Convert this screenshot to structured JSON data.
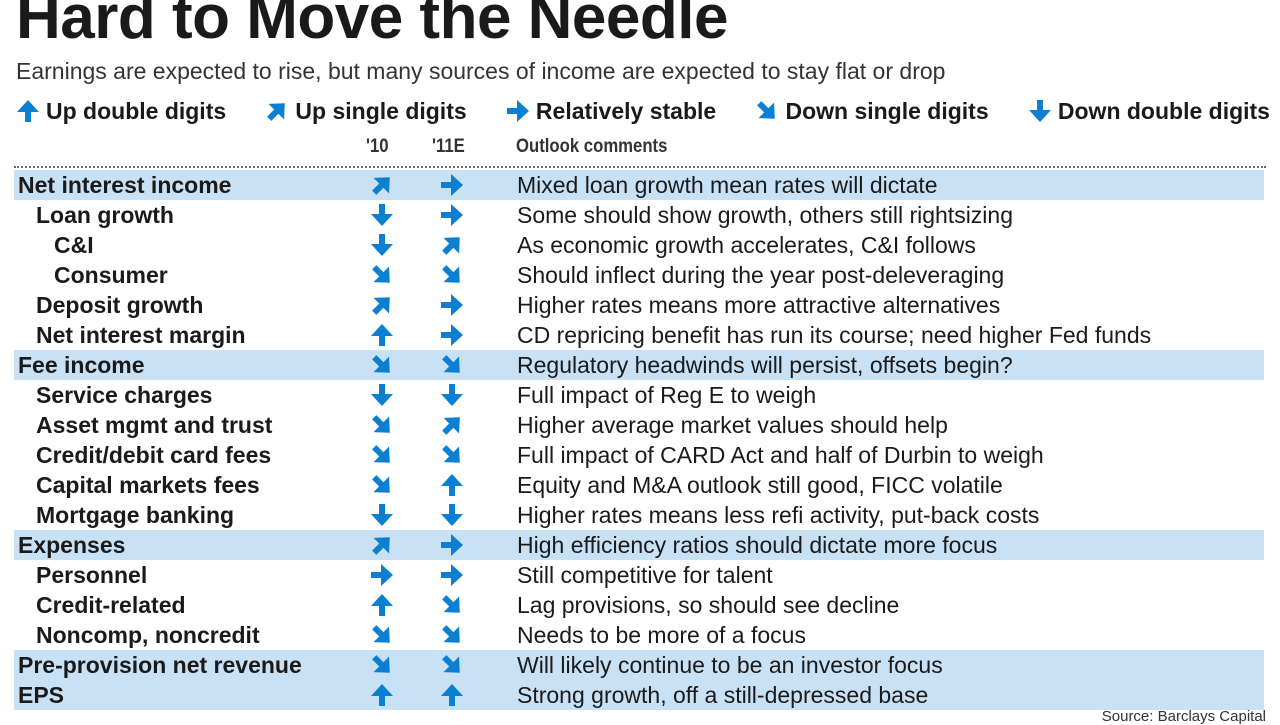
{
  "chart_data": {
    "type": "table",
    "title": "Hard to Move the Needle",
    "subtitle": "Earnings are expected to rise, but many sources of income are expected to stay flat or drop",
    "legend": [
      {
        "key": "up2",
        "label": "Up double digits",
        "icon": "arrow-up-icon"
      },
      {
        "key": "up1",
        "label": "Up single digits",
        "icon": "arrow-up-right-icon"
      },
      {
        "key": "flat",
        "label": "Relatively stable",
        "icon": "arrow-right-icon"
      },
      {
        "key": "down1",
        "label": "Down single digits",
        "icon": "arrow-down-right-icon"
      },
      {
        "key": "down2",
        "label": "Down double digits",
        "icon": "arrow-down-icon"
      }
    ],
    "columns": {
      "y10": "'10",
      "y11": "'11E",
      "comments": "Outlook comments"
    },
    "rows": [
      {
        "label": "Net interest income",
        "level": 0,
        "y10": "up1",
        "y11": "flat",
        "comment": "Mixed loan growth mean rates will dictate"
      },
      {
        "label": "Loan growth",
        "level": 1,
        "y10": "down2",
        "y11": "flat",
        "comment": "Some should show growth, others still rightsizing"
      },
      {
        "label": "C&I",
        "level": 2,
        "y10": "down2",
        "y11": "up1",
        "comment": "As economic growth accelerates, C&I follows"
      },
      {
        "label": "Consumer",
        "level": 2,
        "y10": "down1",
        "y11": "down1",
        "comment": "Should inflect during the year post-deleveraging"
      },
      {
        "label": "Deposit growth",
        "level": 1,
        "y10": "up1",
        "y11": "flat",
        "comment": "Higher rates means more attractive alternatives"
      },
      {
        "label": "Net interest margin",
        "level": 1,
        "y10": "up2",
        "y11": "flat",
        "comment": "CD repricing benefit has run its course; need higher Fed funds"
      },
      {
        "label": "Fee income",
        "level": 0,
        "y10": "down1",
        "y11": "down1",
        "comment": "Regulatory headwinds will persist, offsets begin?"
      },
      {
        "label": "Service charges",
        "level": 1,
        "y10": "down2",
        "y11": "down2",
        "comment": "Full impact of Reg E to weigh"
      },
      {
        "label": "Asset mgmt and trust",
        "level": 1,
        "y10": "down1",
        "y11": "up1",
        "comment": "Higher average market values should help"
      },
      {
        "label": "Credit/debit card fees",
        "level": 1,
        "y10": "down1",
        "y11": "down1",
        "comment": "Full impact of CARD Act and half of Durbin to weigh"
      },
      {
        "label": "Capital markets fees",
        "level": 1,
        "y10": "down1",
        "y11": "up2",
        "comment": "Equity and M&A outlook still good, FICC volatile"
      },
      {
        "label": "Mortgage banking",
        "level": 1,
        "y10": "down2",
        "y11": "down2",
        "comment": "Higher rates means less refi activity, put-back costs"
      },
      {
        "label": "Expenses",
        "level": 0,
        "y10": "up1",
        "y11": "flat",
        "comment": "High efficiency ratios should dictate more focus"
      },
      {
        "label": "Personnel",
        "level": 1,
        "y10": "flat",
        "y11": "flat",
        "comment": "Still competitive for talent"
      },
      {
        "label": "Credit-related",
        "level": 1,
        "y10": "up2",
        "y11": "down1",
        "comment": "Lag provisions, so should see decline"
      },
      {
        "label": "Noncomp, noncredit",
        "level": 1,
        "y10": "down1",
        "y11": "down1",
        "comment": "Needs to be more of a focus"
      },
      {
        "label": "Pre-provision net revenue",
        "level": 0,
        "y10": "down1",
        "y11": "down1",
        "comment": "Will likely continue to be an investor focus"
      },
      {
        "label": "EPS",
        "level": 0,
        "y10": "up2",
        "y11": "up2",
        "comment": "Strong growth, off a still-depressed base"
      }
    ],
    "source": "Source: Barclays Capital",
    "colors": {
      "arrow": "#0b7fd1",
      "highlight": "#c9e1f5",
      "text": "#1a1a1a"
    }
  }
}
